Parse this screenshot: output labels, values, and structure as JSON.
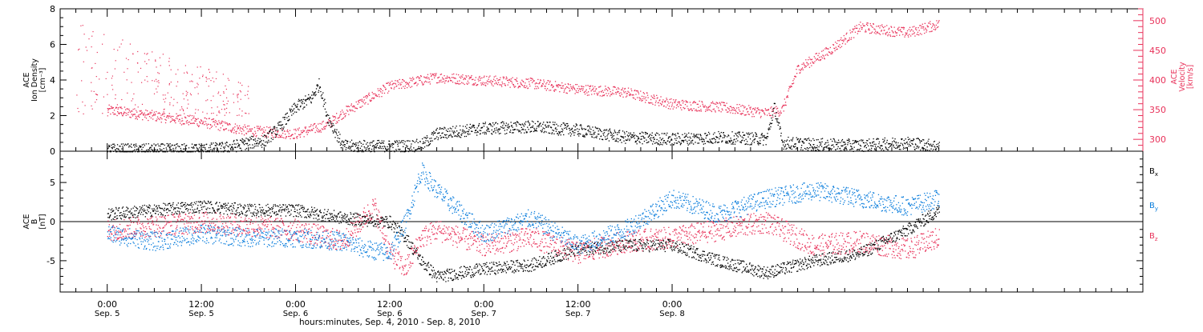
{
  "colors": {
    "black": "#000000",
    "red": "#e8325a",
    "blue": "#0a7ddc"
  },
  "chart_data": [
    {
      "type": "scatter",
      "panel": "plasma",
      "ylabel_lines": [
        "ACE",
        "Ion Density",
        "[cm⁻³]"
      ],
      "ylabel_right_lines": [
        "ACE",
        "Velocity",
        "[km/s]"
      ],
      "ylim": [
        0,
        8
      ],
      "yticks": [
        "0",
        "2",
        "4",
        "6",
        "8"
      ],
      "y2lim": [
        280,
        520
      ],
      "y2ticks": [
        "300",
        "350",
        "400",
        "450",
        "500"
      ],
      "series": [
        {
          "key": "density",
          "color": "black",
          "points": [
            [
              0,
              0.1
            ],
            [
              6,
              0.1
            ],
            [
              12,
              0.12
            ],
            [
              15,
              0.2
            ],
            [
              18,
              0.5
            ],
            [
              20,
              0.6
            ],
            [
              22,
              1.4
            ],
            [
              24,
              2.5
            ],
            [
              26,
              3.0
            ],
            [
              27,
              3.8
            ],
            [
              28,
              2.0
            ],
            [
              30,
              0.3
            ],
            [
              36,
              0.3
            ],
            [
              40,
              0.35
            ],
            [
              42,
              1.0
            ],
            [
              48,
              1.3
            ],
            [
              54,
              1.4
            ],
            [
              60,
              1.2
            ],
            [
              66,
              0.8
            ],
            [
              72,
              0.7
            ],
            [
              78,
              0.8
            ],
            [
              84,
              0.7
            ],
            [
              85,
              2.5
            ],
            [
              86,
              0.5
            ],
            [
              90,
              0.4
            ],
            [
              96,
              0.35
            ],
            [
              102,
              0.5
            ],
            [
              106,
              0.3
            ]
          ]
        },
        {
          "key": "velocity",
          "color": "red",
          "points": [
            [
              0,
              350
            ],
            [
              6,
              340
            ],
            [
              12,
              330
            ],
            [
              18,
              315
            ],
            [
              24,
              310
            ],
            [
              28,
              325
            ],
            [
              30,
              345
            ],
            [
              36,
              390
            ],
            [
              42,
              405
            ],
            [
              48,
              400
            ],
            [
              54,
              395
            ],
            [
              60,
              385
            ],
            [
              66,
              380
            ],
            [
              72,
              360
            ],
            [
              78,
              355
            ],
            [
              84,
              345
            ],
            [
              86,
              350
            ],
            [
              88,
              420
            ],
            [
              92,
              450
            ],
            [
              96,
              490
            ],
            [
              102,
              480
            ],
            [
              106,
              495
            ]
          ]
        },
        {
          "key": "velocity_scatter_early",
          "color": "red",
          "points": [
            [
              2,
              400
            ],
            [
              4,
              430
            ],
            [
              6,
              480
            ],
            [
              8,
              460
            ],
            [
              10,
              470
            ],
            [
              12,
              450
            ],
            [
              14,
              470
            ],
            [
              16,
              455
            ]
          ]
        }
      ]
    },
    {
      "type": "scatter",
      "panel": "magnetic",
      "ylabel_lines": [
        "ACE",
        "B",
        "[nT]"
      ],
      "ylim": [
        -9,
        9
      ],
      "yticks": [
        "-5",
        "0",
        "5"
      ],
      "legend_position": "right",
      "legend": [
        {
          "label": "B",
          "sub": "x",
          "color": "black"
        },
        {
          "label": "B",
          "sub": "y",
          "color": "blue"
        },
        {
          "label": "B",
          "sub": "z",
          "color": "red"
        }
      ],
      "series": [
        {
          "key": "bx",
          "color": "black",
          "points": [
            [
              0,
              1.0
            ],
            [
              6,
              1.5
            ],
            [
              12,
              2.0
            ],
            [
              18,
              1.5
            ],
            [
              24,
              1.5
            ],
            [
              30,
              0.5
            ],
            [
              36,
              0.0
            ],
            [
              38,
              -2.0
            ],
            [
              40,
              -5.0
            ],
            [
              42,
              -7.0
            ],
            [
              48,
              -6.0
            ],
            [
              54,
              -5.5
            ],
            [
              60,
              -3.5
            ],
            [
              66,
              -3.0
            ],
            [
              72,
              -3.0
            ],
            [
              78,
              -5.0
            ],
            [
              84,
              -6.5
            ],
            [
              90,
              -5.0
            ],
            [
              96,
              -4.0
            ],
            [
              102,
              -1.0
            ],
            [
              106,
              1.5
            ]
          ]
        },
        {
          "key": "by",
          "color": "blue",
          "points": [
            [
              0,
              -1.5
            ],
            [
              6,
              -2.5
            ],
            [
              12,
              -1.5
            ],
            [
              18,
              -2.0
            ],
            [
              24,
              -2.0
            ],
            [
              30,
              -2.5
            ],
            [
              33,
              -3.5
            ],
            [
              36,
              -4.0
            ],
            [
              38,
              0.0
            ],
            [
              40,
              6.5
            ],
            [
              42,
              4.0
            ],
            [
              48,
              -1.5
            ],
            [
              54,
              0.5
            ],
            [
              60,
              -3.0
            ],
            [
              66,
              -1.0
            ],
            [
              72,
              3.0
            ],
            [
              78,
              1.0
            ],
            [
              84,
              3.0
            ],
            [
              90,
              4.0
            ],
            [
              96,
              3.0
            ],
            [
              102,
              2.0
            ],
            [
              106,
              3.0
            ]
          ]
        },
        {
          "key": "bz",
          "color": "red",
          "points": [
            [
              0,
              -1.0
            ],
            [
              6,
              -0.5
            ],
            [
              12,
              0.0
            ],
            [
              18,
              -0.5
            ],
            [
              24,
              -1.0
            ],
            [
              30,
              -2.5
            ],
            [
              34,
              2.0
            ],
            [
              36,
              -4.0
            ],
            [
              38,
              -6.0
            ],
            [
              40,
              -2.0
            ],
            [
              42,
              -1.0
            ],
            [
              48,
              -3.0
            ],
            [
              54,
              -2.0
            ],
            [
              60,
              -4.0
            ],
            [
              66,
              -2.5
            ],
            [
              72,
              -2.0
            ],
            [
              78,
              -1.0
            ],
            [
              84,
              0.0
            ],
            [
              90,
              -3.0
            ],
            [
              96,
              -2.5
            ],
            [
              102,
              -3.5
            ],
            [
              106,
              -2.0
            ]
          ]
        }
      ]
    }
  ],
  "xaxis": {
    "xlim": [
      -6,
      132
    ],
    "ticks": [
      {
        "hours": 0,
        "label": "0:00",
        "sublabel": "Sep. 5"
      },
      {
        "hours": 12,
        "label": "12:00",
        "sublabel": "Sep. 5"
      },
      {
        "hours": 24,
        "label": "0:00",
        "sublabel": "Sep. 6"
      },
      {
        "hours": 36,
        "label": "12:00",
        "sublabel": "Sep. 6"
      },
      {
        "hours": 48,
        "label": "0:00",
        "sublabel": "Sep. 7"
      },
      {
        "hours": 60,
        "label": "12:00",
        "sublabel": "Sep. 7"
      },
      {
        "hours": 72,
        "label": "0:00",
        "sublabel": "Sep. 8"
      }
    ],
    "title": "hours:minutes, Sep.  4, 2010 - Sep.  8, 2010"
  }
}
